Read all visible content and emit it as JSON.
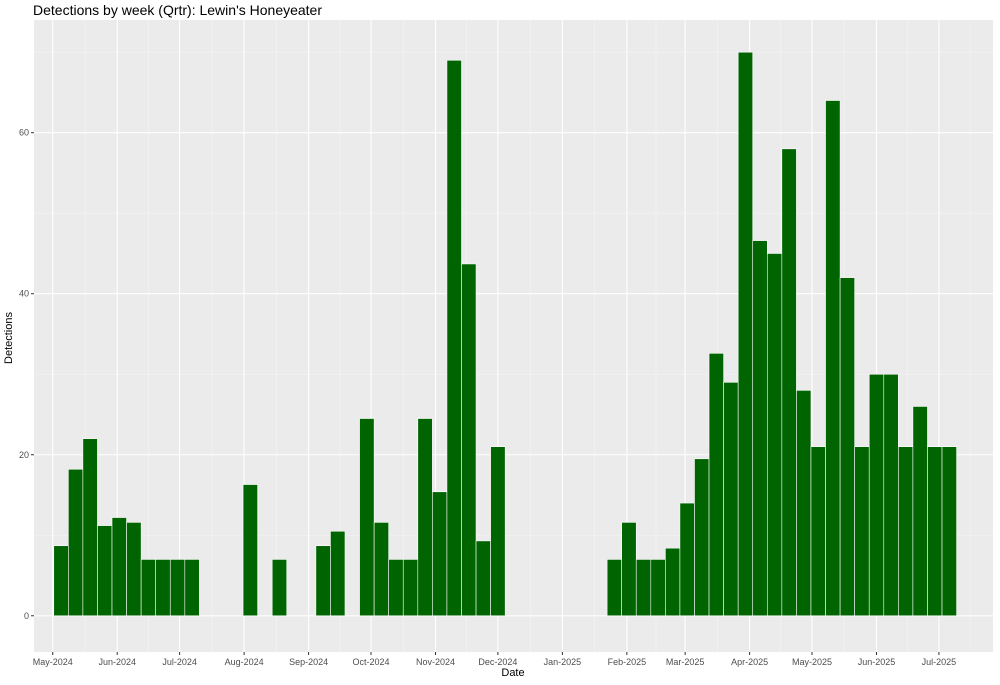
{
  "chart_data": {
    "type": "bar",
    "title": "Detections by week (Qrtr): Lewin's Honeyeater",
    "xlabel": "Date",
    "ylabel": "Detections",
    "ylim": [
      -4.5,
      74
    ],
    "xlim": [
      "2024-04-22",
      "2025-07-27"
    ],
    "yticks": [
      0,
      20,
      40,
      60
    ],
    "xticks": [
      {
        "date": "2024-05-01",
        "label": "May-2024"
      },
      {
        "date": "2024-06-01",
        "label": "Jun-2024"
      },
      {
        "date": "2024-07-01",
        "label": "Jul-2024"
      },
      {
        "date": "2024-08-01",
        "label": "Aug-2024"
      },
      {
        "date": "2024-09-01",
        "label": "Sep-2024"
      },
      {
        "date": "2024-10-01",
        "label": "Oct-2024"
      },
      {
        "date": "2024-11-01",
        "label": "Nov-2024"
      },
      {
        "date": "2024-12-01",
        "label": "Dec-2024"
      },
      {
        "date": "2025-01-01",
        "label": "Jan-2025"
      },
      {
        "date": "2025-02-01",
        "label": "Feb-2025"
      },
      {
        "date": "2025-03-01",
        "label": "Mar-2025"
      },
      {
        "date": "2025-04-01",
        "label": "Apr-2025"
      },
      {
        "date": "2025-05-01",
        "label": "May-2025"
      },
      {
        "date": "2025-06-01",
        "label": "Jun-2025"
      },
      {
        "date": "2025-07-01",
        "label": "Jul-2025"
      }
    ],
    "bar_color": "#006400",
    "grid": true,
    "background": "#ebebeb",
    "series": [
      {
        "x": [
          "2024-05-05",
          "2024-05-12",
          "2024-05-19",
          "2024-05-26",
          "2024-06-02",
          "2024-06-09",
          "2024-06-16",
          "2024-06-23",
          "2024-06-30",
          "2024-07-07",
          "2024-08-04",
          "2024-08-18",
          "2024-09-08",
          "2024-09-15",
          "2024-09-29",
          "2024-10-06",
          "2024-10-13",
          "2024-10-20",
          "2024-10-27",
          "2024-11-03",
          "2024-11-10",
          "2024-11-17",
          "2024-11-24",
          "2024-12-01",
          "2025-01-26",
          "2025-02-02",
          "2025-02-09",
          "2025-02-16",
          "2025-02-23",
          "2025-03-02",
          "2025-03-09",
          "2025-03-16",
          "2025-03-23",
          "2025-03-30",
          "2025-04-06",
          "2025-04-13",
          "2025-04-20",
          "2025-04-27",
          "2025-05-04",
          "2025-05-11",
          "2025-05-18",
          "2025-05-25",
          "2025-06-01",
          "2025-06-08",
          "2025-06-15",
          "2025-06-22",
          "2025-06-29",
          "2025-07-06"
        ],
        "values": [
          8.7,
          18.2,
          22,
          11.2,
          12.2,
          11.6,
          7,
          7,
          7,
          7,
          16.3,
          7,
          8.7,
          10.5,
          24.5,
          11.6,
          7,
          7,
          24.5,
          15.4,
          69,
          43.7,
          9.3,
          21,
          7,
          11.6,
          7,
          7,
          8.4,
          14,
          19.5,
          32.6,
          29,
          70,
          46.6,
          45,
          58,
          28,
          21,
          64,
          42,
          21,
          30,
          30,
          21,
          26,
          21,
          21
        ]
      }
    ]
  }
}
